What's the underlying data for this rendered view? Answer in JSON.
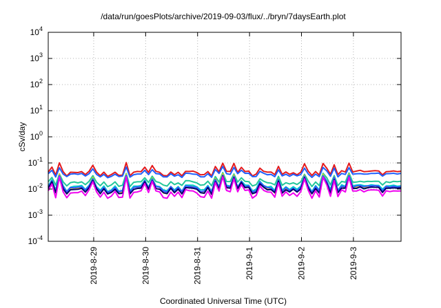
{
  "chart_data": {
    "type": "line",
    "title": "/data/run/goesPlots/archive/2019-09-03/flux/../bryn/7daysEarth.plot",
    "xlabel": "Coordinated Universal Time (UTC)",
    "ylabel": "cSv/day",
    "yscale": "log",
    "ylim": [
      0.0001,
      10000
    ],
    "y_ticks": [
      {
        "base": "10",
        "exp": "-4"
      },
      {
        "base": "10",
        "exp": "-3"
      },
      {
        "base": "10",
        "exp": "-2"
      },
      {
        "base": "10",
        "exp": "-1"
      },
      {
        "base": "10",
        "exp": "0"
      },
      {
        "base": "10",
        "exp": "1"
      },
      {
        "base": "10",
        "exp": "2"
      },
      {
        "base": "10",
        "exp": "3"
      },
      {
        "base": "10",
        "exp": "4"
      }
    ],
    "x_range": [
      "2019-08-28T03:00",
      "2019-09-03T22:00"
    ],
    "x_ticks": [
      "2019-8-29",
      "2019-8-30",
      "2019-8-31",
      "2019-9-1",
      "2019-9-2",
      "2019-9-3"
    ],
    "grid": true,
    "series": [
      {
        "color": "#e41a1c",
        "base": 0.043,
        "amp": 0.9
      },
      {
        "color": "#1f5fff",
        "base": 0.036,
        "amp": 0.7
      },
      {
        "color": "#22c79a",
        "base": 0.0175,
        "amp": 0.9
      },
      {
        "color": "#f0d800",
        "base": 0.0105,
        "amp": 1.4
      },
      {
        "color": "#00cccc",
        "base": 0.012,
        "amp": 1.1
      },
      {
        "color": "#3355ff",
        "base": 0.011,
        "amp": 1.2
      },
      {
        "color": "#000066",
        "base": 0.0095,
        "amp": 1.2
      },
      {
        "color": "#ee00ee",
        "base": 0.0072,
        "amp": 1.5
      }
    ]
  }
}
